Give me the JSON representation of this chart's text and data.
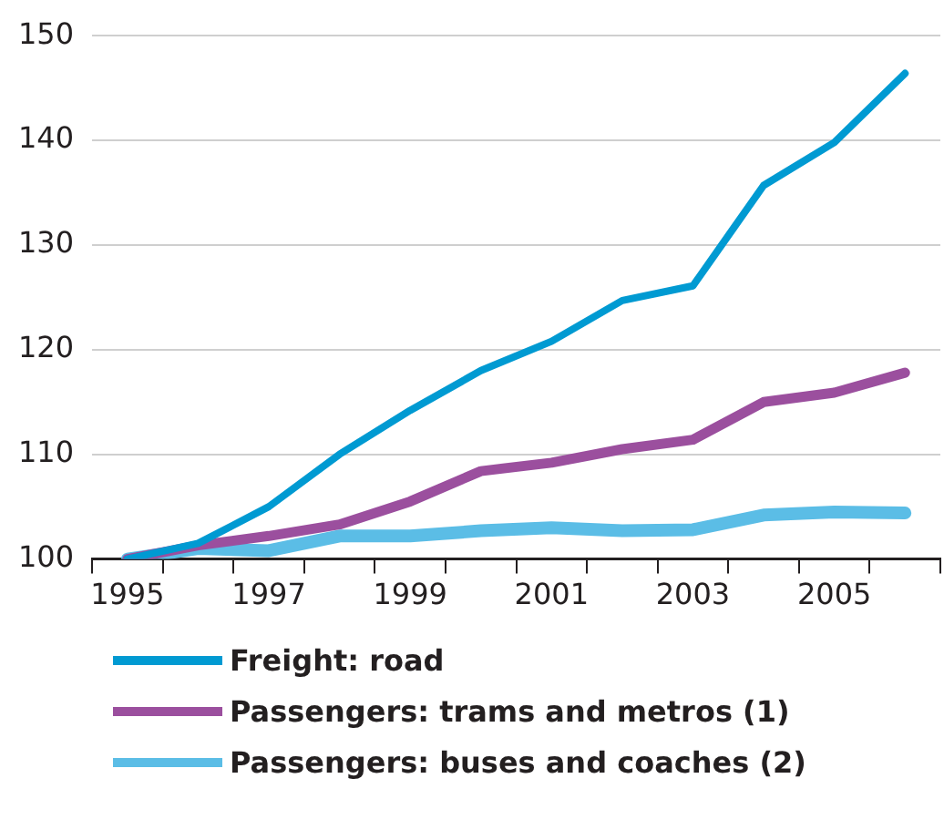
{
  "chart_data": {
    "type": "line",
    "categories": [
      "1995",
      null,
      "1997",
      null,
      "1999",
      null,
      "2001",
      null,
      "2003",
      null,
      "2005",
      null
    ],
    "series": [
      {
        "name": "Freight: road",
        "color": "#009ad2",
        "values": [
          100,
          101.5,
          105,
          110,
          114.2,
          118,
          120.8,
          124.7,
          126.1,
          135.7,
          139.8,
          146.4
        ]
      },
      {
        "name": "Passengers: trams and metros (1)",
        "color": "#9b4f9e",
        "values": [
          100,
          101.3,
          102.2,
          103.3,
          105.5,
          108.4,
          109.2,
          110.5,
          111.4,
          115,
          115.9,
          117.8
        ]
      },
      {
        "name": "Passengers: buses and coaches (2)",
        "color": "#5bbde6",
        "values": [
          100,
          101,
          100.8,
          102.2,
          102.2,
          102.7,
          103,
          102.7,
          102.8,
          104.2,
          104.5,
          104.4
        ]
      }
    ],
    "ylim": [
      100,
      150
    ],
    "yticks": [
      100,
      110,
      120,
      130,
      140,
      150
    ],
    "grid": "y",
    "legend": "bottom",
    "marker": "none",
    "line_style": "solid"
  }
}
